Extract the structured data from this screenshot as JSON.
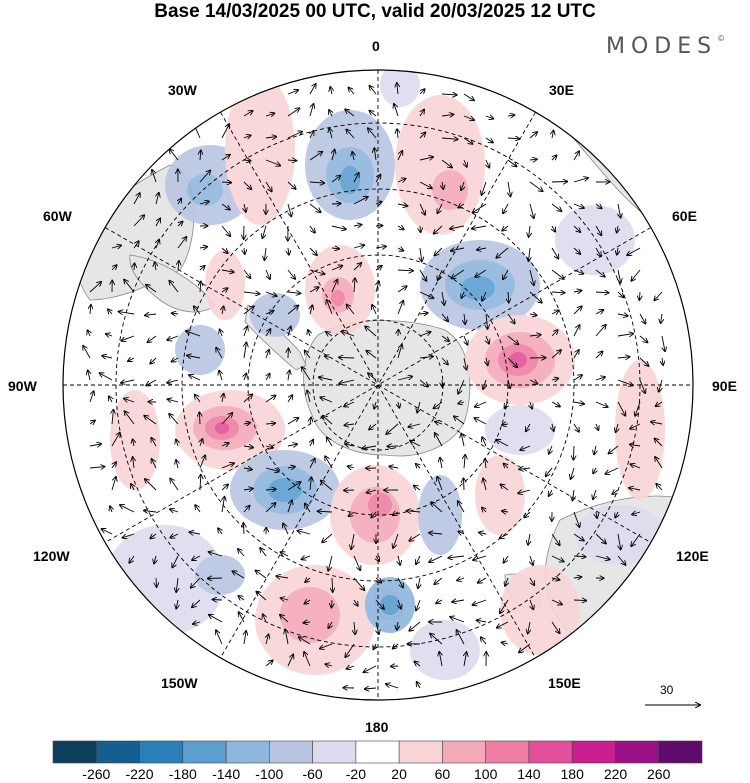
{
  "title": "Base 14/03/2025 00 UTC, valid 20/03/2025 12 UTC",
  "brand": {
    "name": "MODES",
    "mark": "©"
  },
  "longitude_labels": {
    "lon_0": "0",
    "lon_30e": "30E",
    "lon_60e": "60E",
    "lon_90e": "90E",
    "lon_120e": "120E",
    "lon_150e": "150E",
    "lon_180": "180",
    "lon_150w": "150W",
    "lon_120w": "120W",
    "lon_90w": "90W",
    "lon_60w": "60W",
    "lon_30w": "30W"
  },
  "reference_vector": {
    "value": "30"
  },
  "colorbar": {
    "ticks": [
      "-260",
      "-220",
      "-180",
      "-140",
      "-100",
      "-60",
      "-20",
      "20",
      "60",
      "100",
      "140",
      "180",
      "220",
      "260"
    ],
    "colors": [
      "#0d3f5c",
      "#145f8f",
      "#2980b9",
      "#5b9fd0",
      "#8fb6dd",
      "#b9c5e3",
      "#dcdcee",
      "#ffffff",
      "#f9d4d6",
      "#f4a9b9",
      "#ee7fa3",
      "#e2509a",
      "#c81e8e",
      "#9a0f85",
      "#5f0a6c"
    ]
  },
  "colors": {
    "grid": "#000000",
    "land": "#e6e6e6",
    "coast": "#888888"
  }
}
